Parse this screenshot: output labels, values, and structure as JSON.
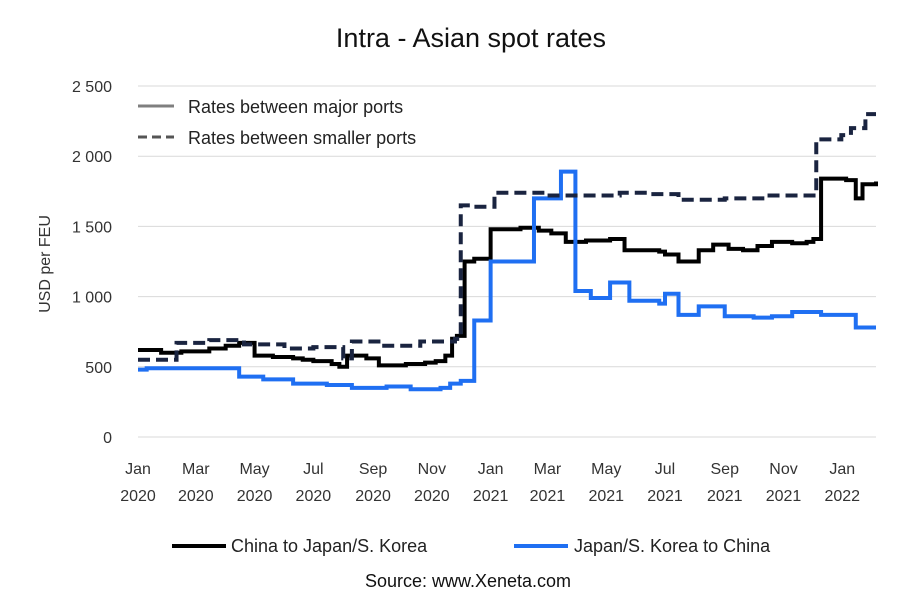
{
  "chart_data": {
    "type": "line",
    "title": "Intra - Asian spot rates",
    "ylabel": "USD per FEU",
    "ylim": [
      0,
      2500
    ],
    "yticks": [
      0,
      500,
      1000,
      1500,
      2000,
      2500
    ],
    "ytick_labels": [
      "0",
      "500",
      "1 000",
      "1 500",
      "2 000",
      "2 500"
    ],
    "x_domain": [
      "2020-01-01",
      "2022-02-05"
    ],
    "xticks": [
      {
        "date": "2020-01-01",
        "line1": "Jan",
        "line2": "2020"
      },
      {
        "date": "2020-03-01",
        "line1": "Mar",
        "line2": "2020"
      },
      {
        "date": "2020-05-01",
        "line1": "May",
        "line2": "2020"
      },
      {
        "date": "2020-07-01",
        "line1": "Jul",
        "line2": "2020"
      },
      {
        "date": "2020-09-01",
        "line1": "Sep",
        "line2": "2020"
      },
      {
        "date": "2020-11-01",
        "line1": "Nov",
        "line2": "2020"
      },
      {
        "date": "2021-01-01",
        "line1": "Jan",
        "line2": "2021"
      },
      {
        "date": "2021-03-01",
        "line1": "Mar",
        "line2": "2021"
      },
      {
        "date": "2021-05-01",
        "line1": "May",
        "line2": "2021"
      },
      {
        "date": "2021-07-01",
        "line1": "Jul",
        "line2": "2021"
      },
      {
        "date": "2021-09-01",
        "line1": "Sep",
        "line2": "2021"
      },
      {
        "date": "2021-11-01",
        "line1": "Nov",
        "line2": "2021"
      },
      {
        "date": "2022-01-01",
        "line1": "Jan",
        "line2": "2022"
      }
    ],
    "grid": "horizontal",
    "style_legend": [
      {
        "label": "Rates between major ports",
        "dash": "solid"
      },
      {
        "label": "Rates between smaller ports",
        "dash": "dashed"
      }
    ],
    "legend": [
      {
        "label": "China to Japan/S. Korea",
        "color": "#000000"
      },
      {
        "label": "Japan/S. Korea to China",
        "color": "#1f6ff2"
      }
    ],
    "source": "Source: www.Xeneta.com",
    "series": [
      {
        "name": "China to Japan/S. Korea",
        "color": "#000000",
        "dash": "solid",
        "x": [
          "2020-01-01",
          "2020-01-25",
          "2020-02-15",
          "2020-03-15",
          "2020-04-01",
          "2020-04-15",
          "2020-05-01",
          "2020-05-20",
          "2020-06-10",
          "2020-06-20",
          "2020-07-01",
          "2020-07-20",
          "2020-07-28",
          "2020-08-05",
          "2020-08-25",
          "2020-09-07",
          "2020-09-20",
          "2020-10-05",
          "2020-10-25",
          "2020-11-05",
          "2020-11-15",
          "2020-11-22",
          "2020-11-27",
          "2020-12-05",
          "2020-12-15",
          "2021-01-01",
          "2021-01-15",
          "2021-02-01",
          "2021-02-20",
          "2021-03-05",
          "2021-03-20",
          "2021-04-10",
          "2021-04-25",
          "2021-05-05",
          "2021-05-20",
          "2021-06-10",
          "2021-06-25",
          "2021-07-01",
          "2021-07-15",
          "2021-08-05",
          "2021-08-20",
          "2021-09-05",
          "2021-09-20",
          "2021-10-05",
          "2021-10-20",
          "2021-11-10",
          "2021-11-25",
          "2021-12-02",
          "2021-12-10",
          "2021-12-31",
          "2022-01-05",
          "2022-01-15",
          "2022-01-22",
          "2022-02-05"
        ],
        "y": [
          620,
          600,
          610,
          630,
          650,
          670,
          580,
          570,
          560,
          550,
          540,
          520,
          500,
          580,
          560,
          510,
          510,
          520,
          530,
          540,
          580,
          700,
          720,
          1250,
          1270,
          1480,
          1480,
          1490,
          1470,
          1450,
          1390,
          1400,
          1400,
          1410,
          1330,
          1330,
          1320,
          1300,
          1250,
          1330,
          1370,
          1340,
          1330,
          1360,
          1390,
          1380,
          1390,
          1410,
          1840,
          1840,
          1830,
          1700,
          1800,
          1820
        ]
      },
      {
        "name": "Japan/S. Korea to China",
        "color": "#1f6ff2",
        "dash": "solid",
        "x": [
          "2020-01-01",
          "2020-01-10",
          "2020-04-15",
          "2020-05-10",
          "2020-06-10",
          "2020-07-15",
          "2020-08-10",
          "2020-09-15",
          "2020-10-10",
          "2020-11-10",
          "2020-11-20",
          "2020-12-01",
          "2020-12-15",
          "2021-01-01",
          "2021-02-15",
          "2021-03-15",
          "2021-03-30",
          "2021-04-15",
          "2021-05-05",
          "2021-05-25",
          "2021-06-10",
          "2021-06-25",
          "2021-07-01",
          "2021-07-15",
          "2021-08-05",
          "2021-09-01",
          "2021-10-01",
          "2021-10-20",
          "2021-11-10",
          "2021-12-10",
          "2022-01-15",
          "2022-02-05"
        ],
        "y": [
          480,
          490,
          430,
          410,
          380,
          370,
          350,
          360,
          340,
          350,
          380,
          400,
          830,
          1250,
          1700,
          1890,
          1040,
          990,
          1100,
          970,
          970,
          950,
          1020,
          870,
          930,
          860,
          850,
          860,
          890,
          870,
          780,
          780
        ]
      },
      {
        "name": "China to Japan/S. Korea (smaller ports)",
        "color": "#1a2440",
        "dash": "dashed",
        "x": [
          "2020-01-01",
          "2020-01-20",
          "2020-02-10",
          "2020-03-15",
          "2020-04-20",
          "2020-06-01",
          "2020-07-01",
          "2020-08-01",
          "2020-08-10",
          "2020-09-10",
          "2020-10-20",
          "2020-11-25",
          "2020-12-01",
          "2020-12-15",
          "2021-01-05",
          "2021-03-01",
          "2021-05-15",
          "2021-06-15",
          "2021-07-15",
          "2021-09-01",
          "2021-10-15",
          "2021-12-01",
          "2021-12-05",
          "2021-12-31",
          "2022-01-10",
          "2022-01-25",
          "2022-02-05"
        ],
        "y": [
          550,
          550,
          670,
          690,
          660,
          630,
          640,
          560,
          680,
          650,
          680,
          700,
          1650,
          1640,
          1740,
          1720,
          1740,
          1730,
          1690,
          1700,
          1720,
          1720,
          2120,
          2150,
          2200,
          2300,
          2300
        ]
      }
    ]
  }
}
